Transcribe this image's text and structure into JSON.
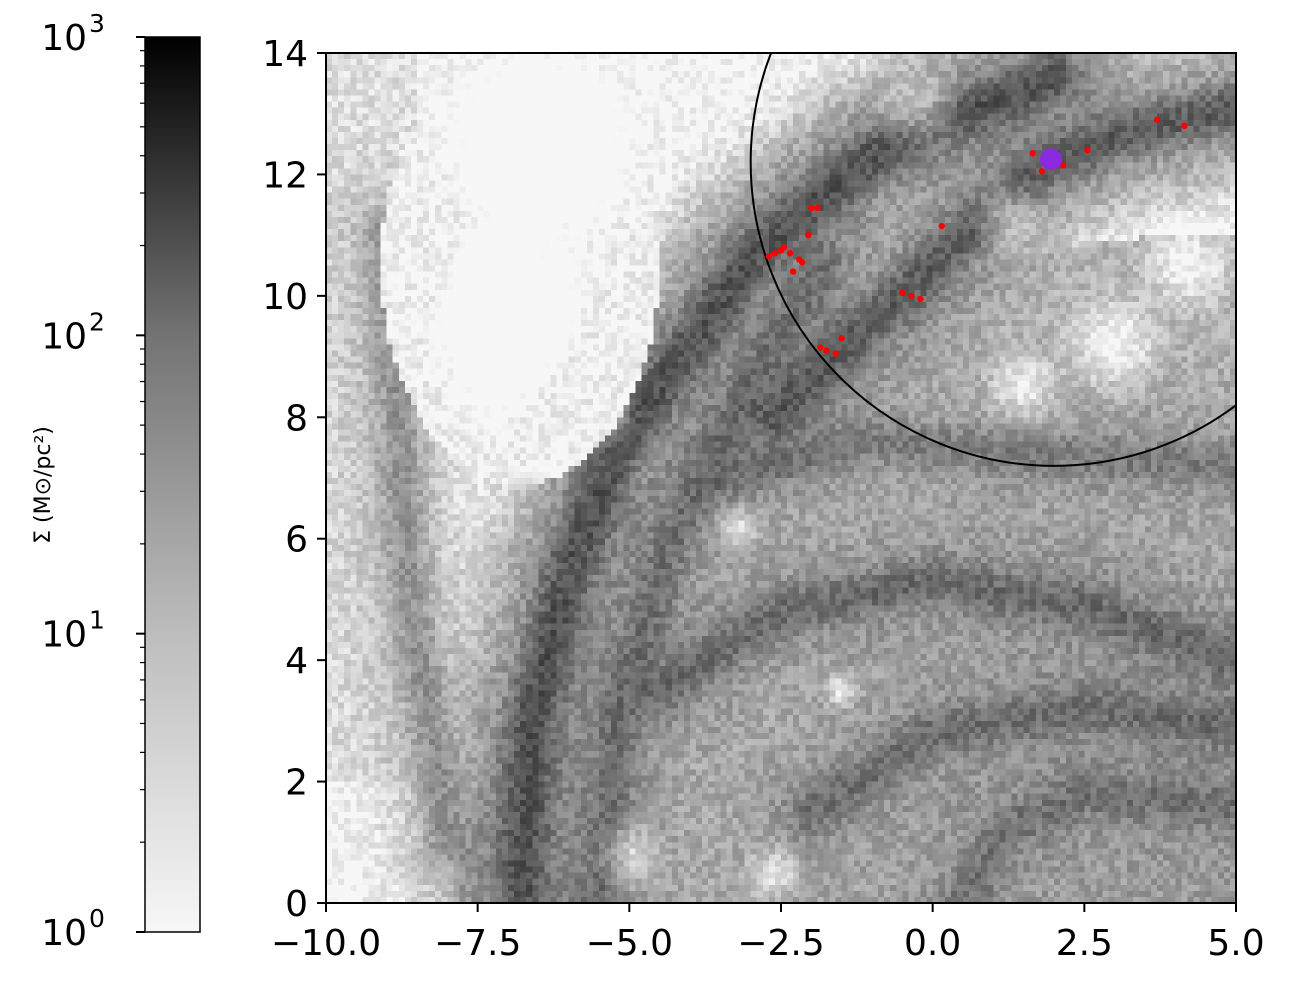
{
  "chart_data": {
    "type": "heatmap",
    "title": "",
    "xlabel": "",
    "ylabel": "",
    "xlim": [
      -10.0,
      5.0
    ],
    "ylim": [
      0,
      14
    ],
    "xticks": [
      -10.0,
      -7.5,
      -5.0,
      -2.5,
      0.0,
      2.5,
      5.0
    ],
    "xtick_labels": [
      "−10.0",
      "−7.5",
      "−5.0",
      "−2.5",
      "0.0",
      "2.5",
      "5.0"
    ],
    "yticks": [
      0,
      2,
      4,
      6,
      8,
      10,
      12,
      14
    ],
    "ytick_labels": [
      "0",
      "2",
      "4",
      "6",
      "8",
      "10",
      "12",
      "14"
    ],
    "grid": false,
    "colorbar": {
      "position": "left",
      "scale": "log",
      "range": [
        1,
        1000
      ],
      "colormap": "greys",
      "tick_labels": [
        {
          "value": 1,
          "base": "10",
          "exp": "0"
        },
        {
          "value": 10,
          "base": "10",
          "exp": "1"
        },
        {
          "value": 100,
          "base": "10",
          "exp": "2"
        },
        {
          "value": 1000,
          "base": "10",
          "exp": "3"
        }
      ],
      "label": "Σ (M⊙/pc²)"
    },
    "circle": {
      "center": [
        2.0,
        12.2
      ],
      "radius": 5.0,
      "color": "#000000"
    },
    "highlight_point": {
      "x": 1.95,
      "y": 12.25,
      "color": "#8a2be2"
    },
    "red_points": {
      "color": "#ff0000",
      "points": [
        [
          -2.7,
          10.65
        ],
        [
          -2.6,
          10.7
        ],
        [
          -2.5,
          10.75
        ],
        [
          -2.45,
          10.8
        ],
        [
          -2.35,
          10.7
        ],
        [
          -2.2,
          10.6
        ],
        [
          -2.15,
          10.55
        ],
        [
          -2.3,
          10.4
        ],
        [
          -2.05,
          11.0
        ],
        [
          -2.0,
          11.45
        ],
        [
          -1.9,
          11.45
        ],
        [
          -1.85,
          9.15
        ],
        [
          -1.75,
          9.1
        ],
        [
          -1.6,
          9.05
        ],
        [
          -1.5,
          9.3
        ],
        [
          -0.5,
          10.05
        ],
        [
          -0.35,
          10.0
        ],
        [
          -0.2,
          9.95
        ],
        [
          0.15,
          11.15
        ],
        [
          1.65,
          12.35
        ],
        [
          1.8,
          12.05
        ],
        [
          2.15,
          12.15
        ],
        [
          2.55,
          12.4
        ],
        [
          3.7,
          12.9
        ],
        [
          4.15,
          12.8
        ]
      ]
    },
    "density_field": {
      "description_free": true,
      "filaments": [
        {
          "points": [
            [
              -6.8,
              0
            ],
            [
              -6.6,
              3
            ],
            [
              -6.0,
              5.5
            ],
            [
              -5.2,
              7.5
            ],
            [
              -4.0,
              9.2
            ],
            [
              -3.0,
              10.6
            ],
            [
              -2.0,
              11.5
            ],
            [
              -1.0,
              12.3
            ],
            [
              0.5,
              13.0
            ],
            [
              2.0,
              13.6
            ]
          ],
          "strength": 80
        },
        {
          "points": [
            [
              -2.6,
              8.0
            ],
            [
              -1.5,
              9.2
            ],
            [
              -0.5,
              10.0
            ],
            [
              0.8,
              11.3
            ],
            [
              1.9,
              12.2
            ],
            [
              3.2,
              12.7
            ],
            [
              5.0,
              13.1
            ]
          ],
          "strength": 60
        },
        {
          "points": [
            [
              -5.5,
              0
            ],
            [
              -5.2,
              3
            ],
            [
              -4.3,
              6.0
            ],
            [
              -3.0,
              8.5
            ],
            [
              -1.8,
              10.5
            ]
          ],
          "strength": 30
        },
        {
          "points": [
            [
              -4.5,
              3.5
            ],
            [
              -2.5,
              4.8
            ],
            [
              0.0,
              5.3
            ],
            [
              2.5,
              4.9
            ],
            [
              5.0,
              4.0
            ]
          ],
          "strength": 35
        },
        {
          "points": [
            [
              -2.0,
              1.5
            ],
            [
              0.0,
              2.8
            ],
            [
              2.5,
              3.2
            ],
            [
              5.0,
              2.9
            ]
          ],
          "strength": 30
        },
        {
          "points": [
            [
              -3.5,
              7.0
            ],
            [
              -1.0,
              7.6
            ],
            [
              1.5,
              7.4
            ],
            [
              5.0,
              7.2
            ]
          ],
          "strength": 20
        },
        {
          "points": [
            [
              0.5,
              0
            ],
            [
              1.2,
              1.2
            ],
            [
              2.5,
              1.8
            ],
            [
              5.0,
              1.6
            ]
          ],
          "strength": 25
        },
        {
          "points": [
            [
              -9.0,
              11.0
            ],
            [
              -8.8,
              8.0
            ],
            [
              -8.6,
              5.0
            ],
            [
              -8.0,
              1.0
            ]
          ],
          "strength": 12
        }
      ],
      "voids": [
        [
          -7.2,
          9.5,
          2.0
        ],
        [
          -6.5,
          12.5,
          1.8
        ],
        [
          -0.2,
          13.0,
          0.8
        ],
        [
          1.2,
          11.4,
          0.7
        ],
        [
          -5.0,
          0.8,
          0.7
        ],
        [
          -2.6,
          0.5,
          0.6
        ],
        [
          4.2,
          10.5,
          1.0
        ],
        [
          3.0,
          9.2,
          1.1
        ],
        [
          -1.5,
          3.5,
          0.4
        ],
        [
          -5.3,
          7.9,
          0.5
        ],
        [
          -3.2,
          6.2,
          0.5
        ],
        [
          1.5,
          8.5,
          0.8
        ]
      ]
    }
  }
}
